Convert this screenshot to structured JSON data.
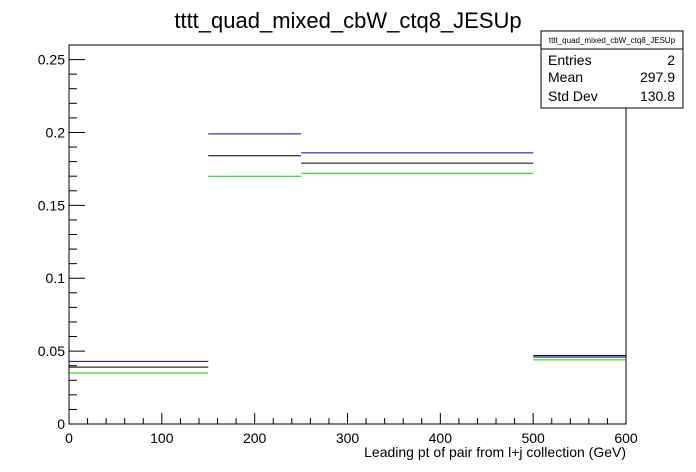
{
  "chart_data": {
    "type": "histogram",
    "title": "tttt_quad_mixed_cbW_ctq8_JESUp",
    "xlabel": "Leading pt of pair from l+j collection (GeV)",
    "ylabel": "",
    "xlim": [
      0,
      600
    ],
    "ylim": [
      0,
      0.26
    ],
    "grid": false,
    "x_ticks": [
      0,
      100,
      200,
      300,
      400,
      500,
      600
    ],
    "y_ticks": [
      0,
      0.05,
      0.1,
      0.15,
      0.2,
      0.25
    ],
    "x_tick_labels": [
      "0",
      "100",
      "200",
      "300",
      "400",
      "500",
      "600"
    ],
    "y_tick_labels": [
      "0",
      "0.05",
      "0.1",
      "0.15",
      "0.2",
      "0.25"
    ],
    "bin_edges": [
      0,
      150,
      250,
      500,
      600
    ],
    "series": [
      {
        "color": "#0000cc",
        "values": [
          0.043,
          0.199,
          0.186,
          0.047
        ]
      },
      {
        "color": "#000000",
        "values": [
          0.039,
          0.184,
          0.179,
          0.046
        ]
      },
      {
        "color": "#00cc00",
        "values": [
          0.035,
          0.17,
          0.172,
          0.044
        ]
      }
    ],
    "stats_box": {
      "title": "tttt_quad_mixed_cbW_ctq8_JESUp",
      "rows": [
        {
          "label": "Entries",
          "value": "2"
        },
        {
          "label": "Mean",
          "value": "297.9"
        },
        {
          "label": "Std Dev",
          "value": "130.8"
        }
      ]
    }
  }
}
